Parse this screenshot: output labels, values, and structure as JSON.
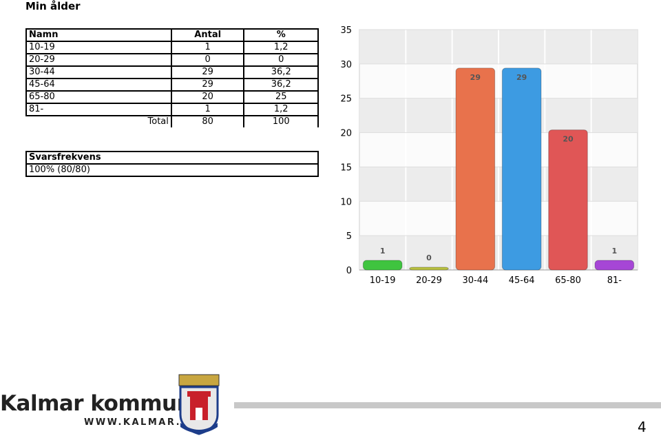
{
  "title": "Min ålder",
  "table": {
    "header": [
      "Namn",
      "Antal",
      "%"
    ],
    "rows": [
      [
        "10-19",
        "1",
        "1,2"
      ],
      [
        "20-29",
        "0",
        "0"
      ],
      [
        "30-44",
        "29",
        "36,2"
      ],
      [
        "45-64",
        "29",
        "36,2"
      ],
      [
        "65-80",
        "20",
        "25"
      ],
      [
        "81-",
        "1",
        "1,2"
      ]
    ],
    "total": [
      "Total",
      "80",
      "100"
    ]
  },
  "response": {
    "header": "Svarsfrekvens",
    "value": "100% (80/80)"
  },
  "chart_data": {
    "type": "bar",
    "categories": [
      "10-19",
      "20-29",
      "30-44",
      "45-64",
      "65-80",
      "81-"
    ],
    "values": [
      1,
      0,
      29,
      29,
      20,
      1
    ],
    "colors": [
      "#3fc43f",
      "#b8c040",
      "#e8724c",
      "#3d9be2",
      "#e05656",
      "#a646d6"
    ],
    "ylim": [
      0,
      35
    ],
    "yticks": [
      0,
      5,
      10,
      15,
      20,
      25,
      30,
      35
    ],
    "grid": true
  },
  "footer": {
    "brand": "Kalmar kommun",
    "url": "WWW.KALMAR.SE",
    "page": "4"
  }
}
